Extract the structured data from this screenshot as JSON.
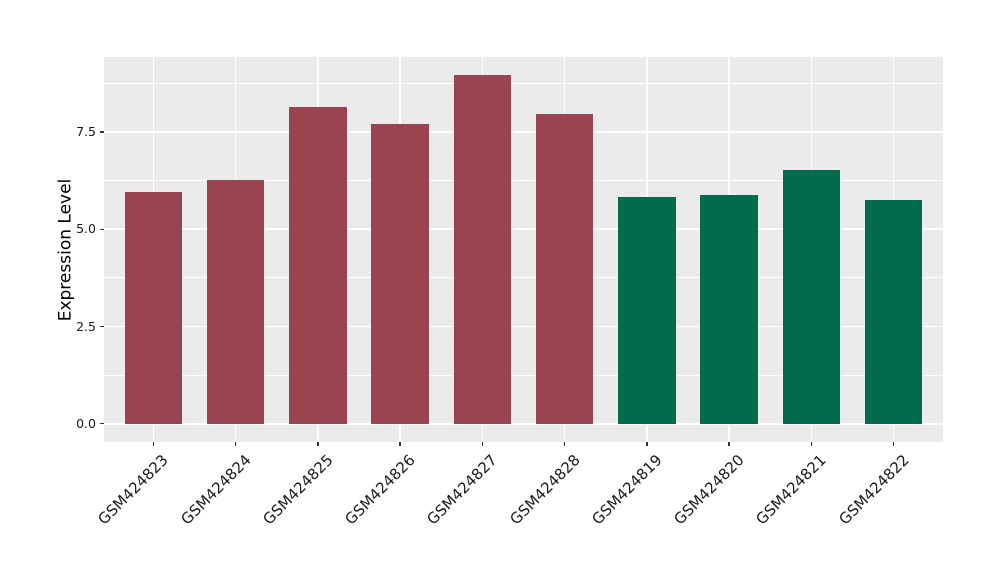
{
  "chart_data": {
    "type": "bar",
    "title": "",
    "xlabel": "",
    "ylabel": "Expression Level",
    "categories": [
      "GSM424823",
      "GSM424824",
      "GSM424825",
      "GSM424826",
      "GSM424827",
      "GSM424828",
      "GSM424819",
      "GSM424820",
      "GSM424821",
      "GSM424822"
    ],
    "values": [
      5.95,
      6.28,
      8.14,
      7.71,
      8.98,
      7.96,
      5.84,
      5.89,
      6.53,
      5.75
    ],
    "bar_colors": [
      "#9A4451",
      "#9A4451",
      "#9A4451",
      "#9A4451",
      "#9A4451",
      "#9A4451",
      "#016B4D",
      "#016B4D",
      "#016B4D",
      "#016B4D"
    ],
    "yticks": [
      0.0,
      2.5,
      5.0,
      7.5
    ],
    "ytick_labels": [
      "0.0",
      "2.5",
      "5.0",
      "7.5"
    ],
    "yticks_minor": [
      1.25,
      3.75,
      6.25,
      8.75
    ],
    "ylim": [
      -0.47,
      9.43
    ],
    "grid": true,
    "legend_position": "none",
    "panel_background": "#EBEBEB",
    "gridline_color": "#FFFFFF",
    "axis_text_color": "#1A1A1A",
    "tick_color": "#333333"
  }
}
